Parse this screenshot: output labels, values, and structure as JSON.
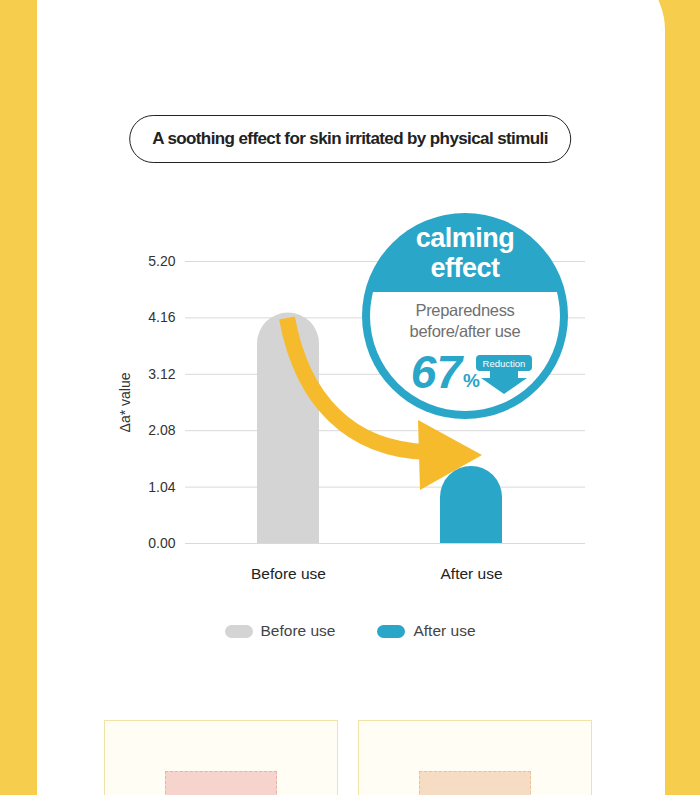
{
  "chart_data": {
    "type": "bar",
    "title": "A soothing effect for skin irritated by physical stimuli",
    "y_label": "Δa* value",
    "categories": [
      "Before use",
      "After use"
    ],
    "values": [
      4.25,
      1.42
    ],
    "colors": [
      "#d4d4d4",
      "#2aa6c8"
    ],
    "ylim": [
      0,
      5.2
    ],
    "yticks": [
      {
        "value": 0,
        "label": "0.00"
      },
      1.04,
      2.08,
      3.12,
      4.16,
      {
        "value": 5.2,
        "label": "5.20"
      }
    ],
    "grid": true,
    "legend": "bottom",
    "annotation": {
      "title": "calming effect",
      "text": "Preparedness before/after use",
      "value": 67,
      "value_label": "67%",
      "note": "Reduction"
    }
  }
}
